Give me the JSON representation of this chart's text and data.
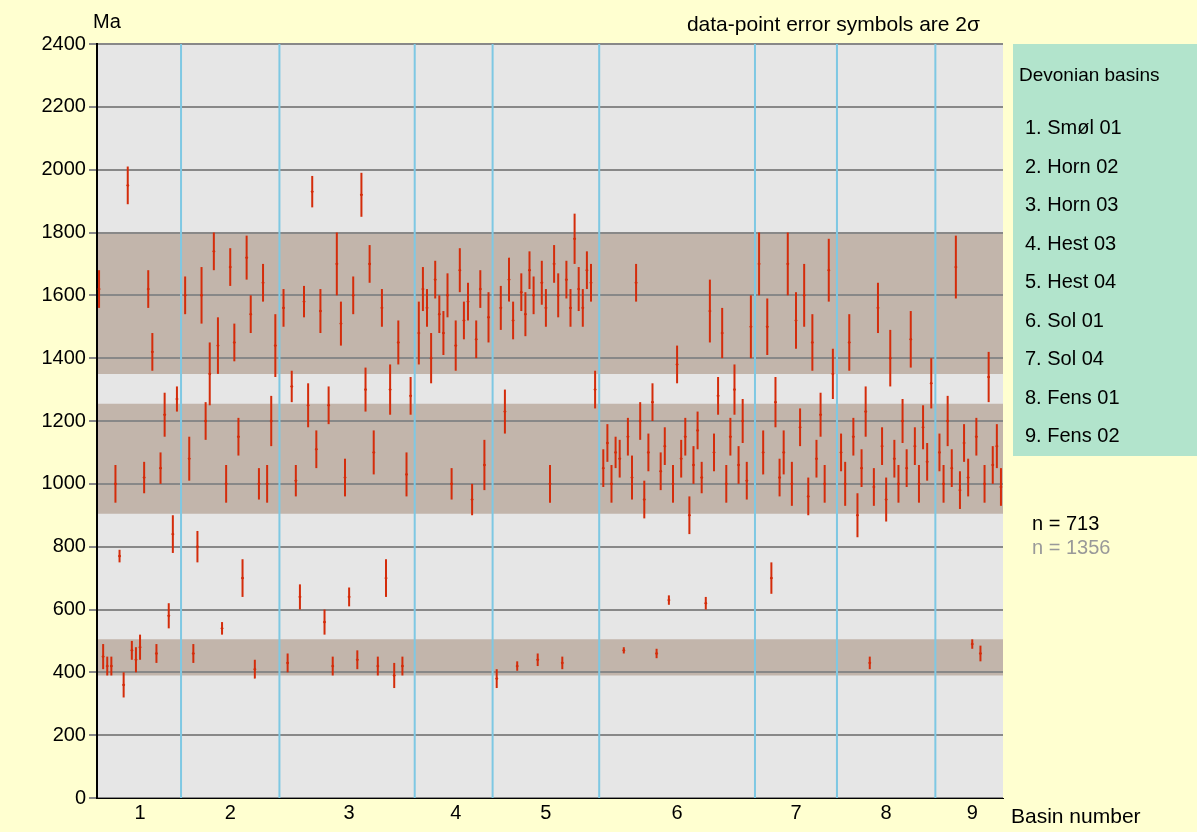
{
  "chart_data": {
    "type": "scatter",
    "ylabel": "Ma",
    "xlabel": "Basin number",
    "grid": "y",
    "annotations": [
      "data-point error symbols are 2σ",
      "Devonian basins",
      "1. Smøl 01",
      "2. Horn 02",
      "3. Horn 03",
      "4. Hest 03",
      "5. Hest 04",
      "6. Sol 01",
      "7. Sol 04",
      "8. Fens 01",
      "9. Fens 02",
      "n = 713",
      "n = 1356"
    ],
    "categories": [
      null,
      null,
      null,
      null,
      null,
      null,
      null,
      null,
      null,
      null,
      "1",
      null,
      null,
      null,
      null,
      null,
      null,
      null,
      null,
      null,
      null,
      null,
      null,
      null,
      null,
      null,
      null,
      null,
      null,
      null,
      null,
      null,
      "2",
      null,
      null,
      null,
      null,
      null,
      null,
      null,
      null,
      null,
      null,
      null,
      null,
      null,
      null,
      null,
      null,
      null,
      null,
      null,
      null,
      null,
      null,
      null,
      null,
      null,
      null,
      null,
      null,
      "3",
      null,
      null,
      null,
      null,
      null,
      null,
      null,
      null,
      null,
      null,
      null,
      null,
      null,
      null,
      null,
      null,
      null,
      null,
      null,
      null,
      null,
      null,
      null,
      null,
      null,
      "4",
      null,
      null,
      null,
      null,
      null,
      null,
      null,
      null,
      null,
      null,
      null,
      null,
      null,
      null,
      null,
      null,
      null,
      null,
      null,
      null,
      null,
      "5",
      null,
      null,
      null,
      null,
      null,
      null,
      null,
      null,
      null,
      null,
      null,
      null,
      null,
      null,
      null,
      null,
      null,
      null,
      null,
      null,
      null,
      null,
      null,
      null,
      null,
      null,
      null,
      null,
      null,
      null,
      null,
      "6",
      null,
      null,
      null,
      null,
      null,
      null,
      null,
      null,
      null,
      null,
      null,
      null,
      null,
      null,
      null,
      null,
      null,
      null,
      null,
      null,
      null,
      null,
      null,
      null,
      null,
      null,
      null,
      null,
      "7",
      null,
      null,
      null,
      null,
      null,
      null,
      null,
      null,
      null,
      null,
      null,
      null,
      null,
      null,
      null,
      null,
      null,
      null,
      null,
      null,
      null,
      "8",
      null,
      null,
      null,
      null,
      null,
      null,
      null,
      null,
      null,
      null,
      null,
      null,
      null,
      null,
      null,
      null,
      null,
      null,
      null,
      null,
      "9",
      null,
      null,
      null,
      null,
      null,
      null,
      null
    ],
    "ylim": [
      0,
      2400
    ],
    "yticks": [
      0,
      200,
      400,
      600,
      800,
      1000,
      1200,
      1400,
      1600,
      1800,
      2000,
      2200,
      2400
    ],
    "bands": [
      {
        "axis": "y",
        "from": 390,
        "to": 505,
        "color": "#c2b5ab"
      },
      {
        "axis": "y",
        "from": 905,
        "to": 1255,
        "color": "#c2b5ab"
      },
      {
        "axis": "y",
        "from": 1350,
        "to": 1800,
        "color": "#c2b5ab"
      }
    ],
    "series": [
      {
        "color": "#d42c0a",
        "values": [
          1620,
          450,
          420,
          420,
          1000,
          770,
          360,
          1950,
          470,
          440,
          480,
          1020,
          1620,
          1420,
          460,
          1050,
          1220,
          580,
          840,
          1270,
          null,
          1600,
          1080,
          460,
          800,
          1600,
          1200,
          1350,
          1740,
          1440,
          540,
          1000,
          1690,
          1450,
          1150,
          700,
          1720,
          1540,
          410,
          1000,
          1640,
          1000,
          1200,
          1440,
          null,
          1560,
          430,
          1310,
          1010,
          640,
          1580,
          1250,
          1930,
          1110,
          1550,
          560,
          1250,
          420,
          1700,
          1510,
          1020,
          640,
          1600,
          440,
          1920,
          1300,
          1700,
          1100,
          420,
          1560,
          700,
          1300,
          390,
          1450,
          420,
          1030,
          1280,
          null,
          1480,
          1620,
          1560,
          1400,
          1650,
          1540,
          1480,
          1600,
          1000,
          1440,
          1680,
          1520,
          1580,
          950,
          1460,
          1620,
          1060,
          1530,
          null,
          380,
          1560,
          1230,
          1650,
          1520,
          420,
          1610,
          1540,
          1680,
          1600,
          440,
          1640,
          1560,
          1000,
          1700,
          1600,
          430,
          1650,
          1560,
          1780,
          1620,
          1560,
          1680,
          1640,
          1300,
          null,
          1050,
          1130,
          1000,
          1100,
          1080,
          470,
          1150,
          1020,
          1640,
          1200,
          950,
          1100,
          1260,
          460,
          1040,
          1120,
          630,
          1000,
          1380,
          1080,
          1150,
          900,
          1060,
          1170,
          1020,
          620,
          1550,
          1100,
          1280,
          1480,
          1000,
          1150,
          1300,
          1060,
          1200,
          1010,
          1500,
          null,
          1700,
          1100,
          1500,
          700,
          1260,
          1020,
          1100,
          1700,
          1000,
          1520,
          1180,
          1600,
          960,
          1450,
          1080,
          1220,
          1000,
          1680,
          1350,
          null,
          1100,
          1000,
          1450,
          1150,
          900,
          1050,
          1230,
          430,
          990,
          1560,
          1120,
          950,
          1400,
          1080,
          1000,
          1200,
          1050,
          1460,
          1120,
          1000,
          1180,
          1070,
          1320,
          null,
          1100,
          1000,
          1200,
          1050,
          1690,
          980,
          1130,
          1020,
          490,
          1150,
          460,
          1000,
          1340,
          1060,
          1120,
          990
        ],
        "errors": [
          60,
          40,
          30,
          30,
          60,
          20,
          40,
          60,
          30,
          40,
          40,
          50,
          60,
          60,
          30,
          50,
          70,
          40,
          60,
          40,
          null,
          60,
          70,
          30,
          50,
          90,
          60,
          100,
          60,
          90,
          20,
          60,
          60,
          60,
          60,
          60,
          70,
          60,
          30,
          50,
          60,
          60,
          80,
          100,
          null,
          60,
          30,
          50,
          50,
          40,
          50,
          70,
          50,
          60,
          70,
          40,
          60,
          30,
          100,
          70,
          60,
          30,
          60,
          30,
          70,
          70,
          60,
          70,
          30,
          60,
          60,
          80,
          40,
          70,
          30,
          70,
          60,
          null,
          100,
          70,
          60,
          80,
          60,
          60,
          70,
          70,
          50,
          80,
          70,
          60,
          60,
          50,
          60,
          60,
          80,
          80,
          null,
          30,
          70,
          70,
          70,
          60,
          15,
          60,
          70,
          60,
          60,
          20,
          70,
          60,
          60,
          60,
          70,
          20,
          60,
          60,
          80,
          70,
          60,
          60,
          60,
          60,
          null,
          60,
          60,
          60,
          50,
          60,
          10,
          60,
          70,
          60,
          60,
          60,
          60,
          60,
          15,
          60,
          60,
          15,
          60,
          60,
          60,
          60,
          60,
          60,
          60,
          50,
          20,
          100,
          60,
          60,
          80,
          60,
          60,
          80,
          60,
          70,
          60,
          100,
          null,
          100,
          70,
          90,
          50,
          80,
          60,
          70,
          100,
          70,
          90,
          60,
          100,
          60,
          90,
          60,
          70,
          60,
          100,
          80,
          null,
          60,
          70,
          90,
          60,
          70,
          60,
          80,
          20,
          60,
          80,
          60,
          70,
          90,
          60,
          60,
          70,
          60,
          90,
          60,
          60,
          70,
          60,
          80,
          null,
          60,
          60,
          80,
          60,
          100,
          60,
          60,
          60,
          15,
          60,
          25,
          60,
          80,
          60,
          70,
          60
        ]
      }
    ]
  }
}
